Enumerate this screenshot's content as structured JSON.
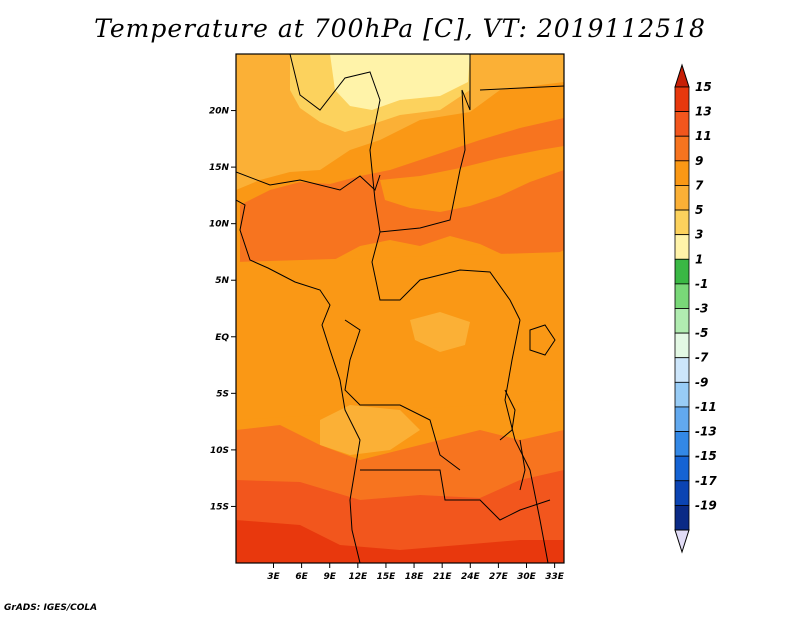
{
  "title": "Temperature at 700hPa [C], VT: 2019112518",
  "credit": "GrADS: IGES/COLA",
  "map": {
    "lon_range": [
      -1,
      34
    ],
    "lat_range": [
      -20,
      25
    ],
    "lat_labels": [
      "20N",
      "15N",
      "10N",
      "5N",
      "EQ",
      "5S",
      "10S",
      "15S"
    ],
    "lat_values": [
      20,
      15,
      10,
      5,
      0,
      -5,
      -10,
      -15
    ],
    "lon_labels": [
      "3E",
      "6E",
      "9E",
      "12E",
      "15E",
      "18E",
      "21E",
      "24E",
      "27E",
      "30E",
      "33E"
    ],
    "lon_values": [
      3,
      6,
      9,
      12,
      15,
      18,
      21,
      24,
      27,
      30,
      33
    ]
  },
  "colorbar": {
    "labels": [
      "15",
      "13",
      "11",
      "9",
      "7",
      "5",
      "3",
      "1",
      "-1",
      "-3",
      "-5",
      "-7",
      "-9",
      "-11",
      "-13",
      "-15",
      "-17",
      "-19"
    ],
    "colors": [
      "#e8380d",
      "#f2561d",
      "#f7741f",
      "#fa9815",
      "#fbb036",
      "#fcd25d",
      "#fff3a9",
      "#3ab844",
      "#79d878",
      "#b1ecb1",
      "#e3f8e4",
      "#cde6fb",
      "#98ccf6",
      "#62a9ef",
      "#3388e6",
      "#1563d4",
      "#0b44b3",
      "#0a2a86"
    ],
    "top_arrow_color": "#c71f06",
    "bottom_arrow_color": "#e1dcf6",
    "shown_top": 15,
    "shown_bottom": -19
  }
}
